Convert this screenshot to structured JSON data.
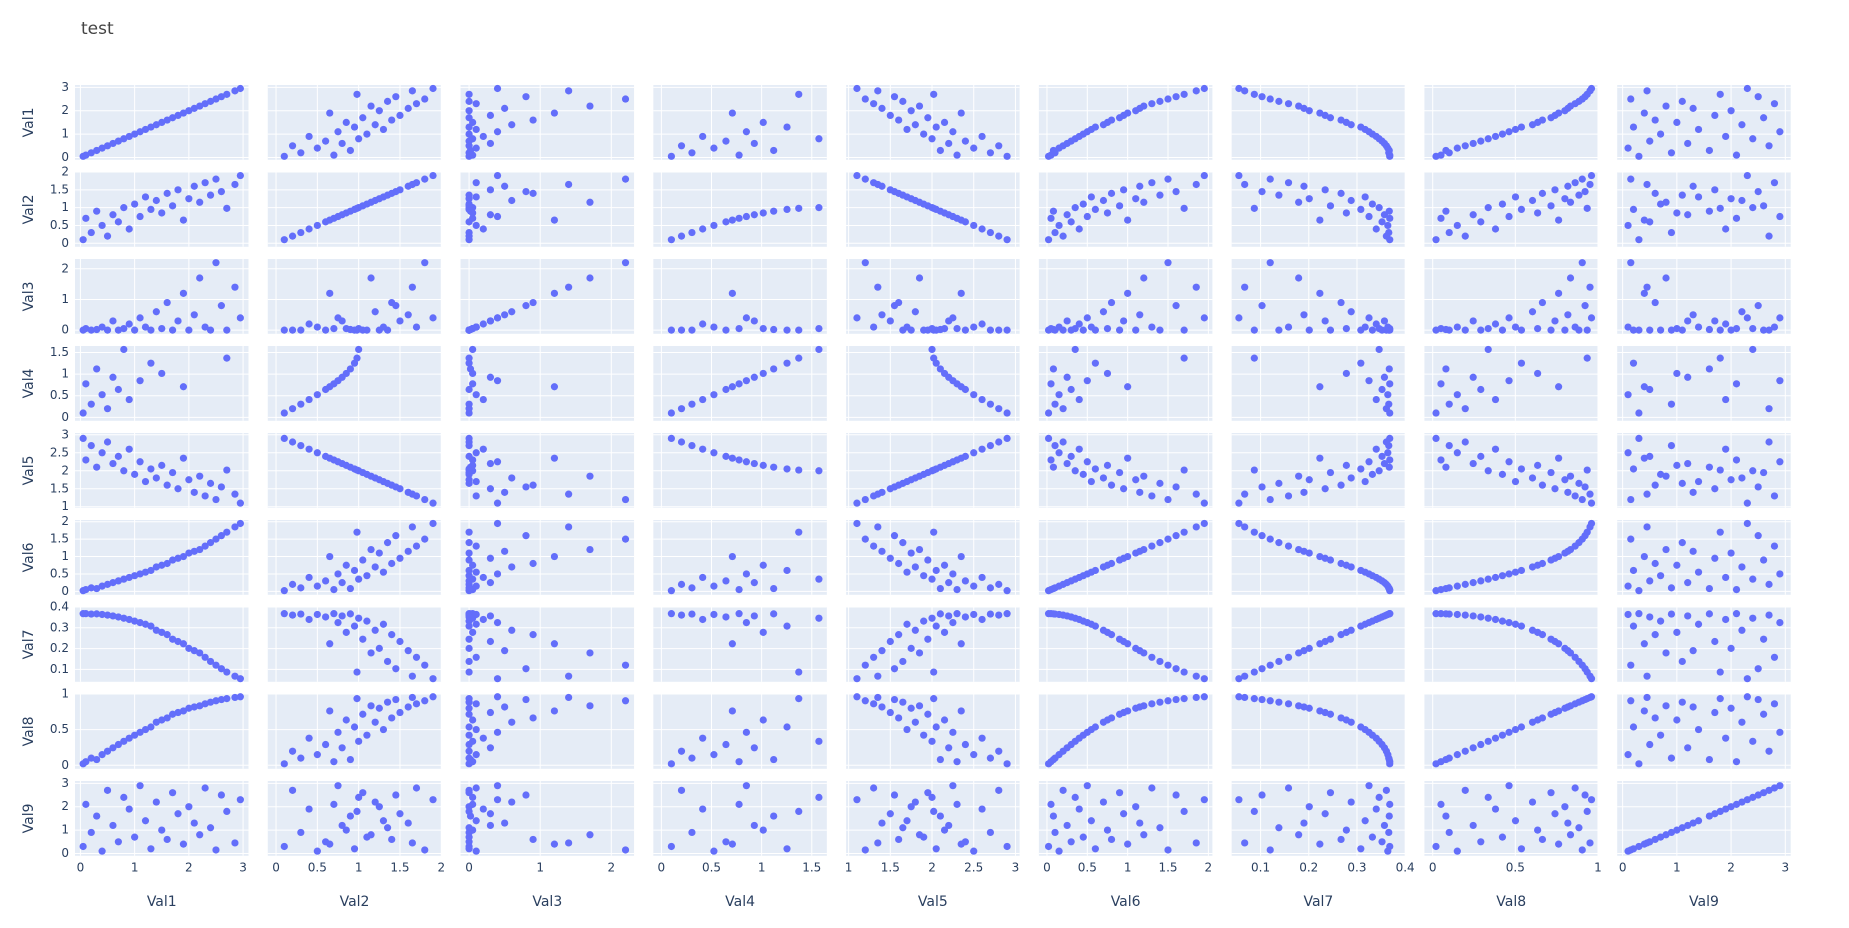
{
  "chart_data": {
    "type": "splom",
    "title": "test",
    "color": "#636efa",
    "grid": true,
    "dimensions": [
      {
        "label": "Val1",
        "lim": [
          -0.1,
          3.1
        ],
        "ticks": [
          0,
          1,
          2,
          3
        ],
        "values": [
          0.05,
          0.1,
          0.2,
          0.3,
          0.4,
          0.5,
          0.6,
          0.7,
          0.8,
          0.9,
          1.0,
          1.1,
          1.2,
          1.3,
          1.4,
          1.5,
          1.6,
          1.7,
          1.8,
          1.9,
          2.0,
          2.1,
          2.2,
          2.3,
          2.4,
          2.5,
          2.6,
          2.7,
          2.85,
          2.95
        ]
      },
      {
        "label": "Val2",
        "lim": [
          -0.1,
          2.0
        ],
        "ticks": [
          0,
          0.5,
          1,
          1.5,
          2
        ],
        "values": [
          0.1,
          0.7,
          0.3,
          0.9,
          0.5,
          0.2,
          0.8,
          0.6,
          1.0,
          0.4,
          1.1,
          0.75,
          1.3,
          0.95,
          1.2,
          0.85,
          1.4,
          1.05,
          1.5,
          0.65,
          1.25,
          1.6,
          1.15,
          1.7,
          1.35,
          1.8,
          1.45,
          0.98,
          1.65,
          1.9
        ]
      },
      {
        "label": "Val3",
        "lim": [
          -0.12,
          2.32
        ],
        "ticks": [
          0,
          1,
          2
        ],
        "values": [
          0.0,
          0.05,
          0.0,
          0.02,
          0.1,
          0.0,
          0.3,
          0.0,
          0.05,
          0.2,
          0.0,
          0.4,
          0.1,
          0.0,
          0.6,
          0.05,
          0.9,
          0.0,
          0.3,
          1.2,
          0.0,
          0.5,
          1.7,
          0.1,
          0.0,
          2.2,
          0.8,
          0.0,
          1.4,
          0.4
        ]
      },
      {
        "label": "Val4",
        "lim": [
          -0.08,
          1.65
        ],
        "ticks": [
          0,
          0.5,
          1,
          1.5
        ],
        "values": [
          0.1,
          0.775,
          0.305,
          1.12,
          0.524,
          0.201,
          0.927,
          0.644,
          1.571,
          0.412,
          null,
          0.848,
          null,
          1.253,
          null,
          1.016,
          null,
          null,
          null,
          0.708,
          null,
          null,
          null,
          null,
          null,
          null,
          null,
          1.37,
          null,
          null
        ]
      },
      {
        "label": "Val5",
        "lim": [
          0.97,
          3.05
        ],
        "ticks": [
          1,
          1.5,
          2,
          2.5,
          3
        ],
        "values": [
          2.9,
          2.3,
          2.7,
          2.1,
          2.5,
          2.8,
          2.2,
          2.4,
          2.0,
          2.6,
          1.9,
          2.25,
          1.7,
          2.05,
          1.8,
          2.15,
          1.6,
          1.95,
          1.5,
          2.35,
          1.75,
          1.4,
          1.85,
          1.3,
          1.65,
          1.2,
          1.55,
          2.02,
          1.35,
          1.1
        ]
      },
      {
        "label": "Val6",
        "lim": [
          -0.1,
          2.05
        ],
        "ticks": [
          0,
          0.5,
          1,
          1.5,
          2
        ],
        "values": [
          0.02,
          0.05,
          0.1,
          0.08,
          0.15,
          0.2,
          0.25,
          0.3,
          0.35,
          0.4,
          0.45,
          0.5,
          0.55,
          0.6,
          0.7,
          0.75,
          0.8,
          0.9,
          0.95,
          1.0,
          1.1,
          1.15,
          1.2,
          1.3,
          1.4,
          1.5,
          1.6,
          1.7,
          1.85,
          1.95
        ]
      },
      {
        "label": "Val7",
        "lim": [
          0.04,
          0.4
        ],
        "ticks": [
          0.1,
          0.2,
          0.3,
          0.4
        ],
        "values": [
          0.368,
          0.368,
          0.366,
          0.367,
          0.364,
          0.361,
          0.357,
          0.352,
          0.346,
          0.34,
          0.332,
          0.325,
          0.317,
          0.308,
          0.288,
          0.278,
          0.267,
          0.245,
          0.234,
          0.223,
          0.201,
          0.19,
          0.179,
          0.158,
          0.138,
          0.12,
          0.103,
          0.087,
          0.067,
          0.055
        ]
      },
      {
        "label": "Val8",
        "lim": [
          -0.05,
          1.0
        ],
        "ticks": [
          0,
          0.5,
          1
        ],
        "values": [
          0.02,
          0.05,
          0.1,
          0.08,
          0.149,
          0.197,
          0.245,
          0.291,
          0.336,
          0.38,
          0.422,
          0.462,
          0.501,
          0.537,
          0.604,
          0.635,
          0.664,
          0.716,
          0.74,
          0.762,
          0.8,
          0.818,
          0.834,
          0.862,
          0.885,
          0.905,
          0.922,
          0.935,
          0.952,
          0.961
        ]
      },
      {
        "label": "Val9",
        "lim": [
          -0.1,
          3.1
        ],
        "ticks": [
          0,
          1,
          2,
          3
        ],
        "values": [
          0.3,
          2.1,
          0.9,
          1.6,
          0.1,
          2.7,
          1.2,
          0.5,
          2.4,
          1.9,
          0.7,
          2.9,
          1.4,
          0.2,
          2.2,
          1.0,
          0.6,
          2.6,
          1.7,
          0.4,
          2.0,
          1.3,
          0.8,
          2.8,
          1.1,
          0.15,
          2.5,
          1.8,
          0.45,
          2.3
        ]
      }
    ]
  }
}
